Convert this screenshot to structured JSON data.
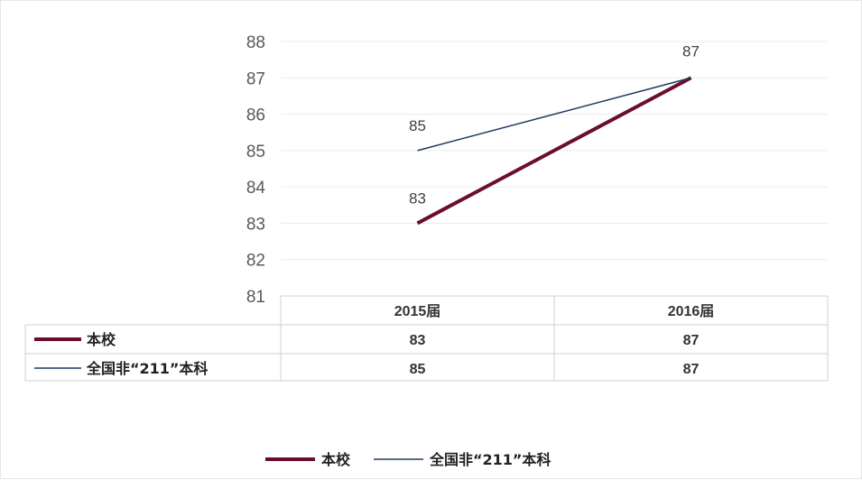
{
  "chart_data": {
    "type": "line",
    "title": "",
    "xlabel": "",
    "ylabel": "",
    "categories": [
      "2015届",
      "2016届"
    ],
    "ylim": [
      81,
      88
    ],
    "yticks": [
      81,
      82,
      83,
      84,
      85,
      86,
      87,
      88
    ],
    "grid": true,
    "legend_position": "bottom",
    "data_table": true,
    "series": [
      {
        "name": "本校",
        "values": [
          83,
          87
        ],
        "color": "#6b0d2e"
      },
      {
        "name": "全国非“211”本科",
        "values": [
          85,
          87
        ],
        "color": "#1f3864"
      }
    ]
  }
}
